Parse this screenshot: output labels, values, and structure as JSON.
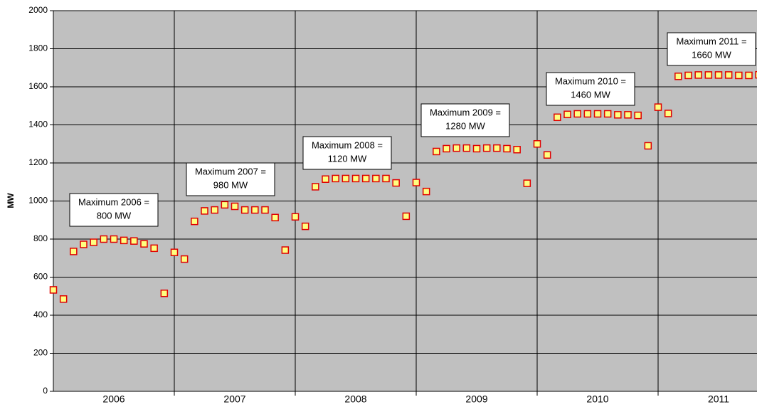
{
  "chart_data": {
    "type": "scatter",
    "y_label": "MW",
    "categories": [
      "2006",
      "2007",
      "2008",
      "2009",
      "2010",
      "2011"
    ],
    "series": [
      {
        "name": "MW",
        "color": "#ffff80",
        "edge_color": "#e00000",
        "values": [
          533,
          485,
          735,
          772,
          783,
          800,
          800,
          793,
          790,
          775,
          752,
          515,
          730,
          695,
          893,
          948,
          953,
          980,
          972,
          953,
          953,
          953,
          913,
          742,
          917,
          867,
          1075,
          1115,
          1118,
          1118,
          1118,
          1118,
          1118,
          1118,
          1095,
          920,
          1097,
          1050,
          1260,
          1275,
          1278,
          1278,
          1275,
          1278,
          1278,
          1275,
          1270,
          1093,
          1300,
          1242,
          1440,
          1455,
          1458,
          1458,
          1458,
          1458,
          1453,
          1453,
          1450,
          1290,
          1493,
          1460,
          1655,
          1660,
          1662,
          1662,
          1662,
          1662,
          1660,
          1660,
          1663
        ]
      }
    ],
    "ylim": [
      0,
      2000
    ],
    "yticks": [
      0,
      200,
      400,
      600,
      800,
      1000,
      1200,
      1400,
      1600,
      1800,
      2000
    ],
    "grid": true,
    "background": "#c0c0c0",
    "annotations": [
      [
        "Maximum 2006 =",
        "800 MW"
      ],
      [
        "Maximum 2007 =",
        "980 MW"
      ],
      [
        "Maximum 2008 =",
        "1120 MW"
      ],
      [
        "Maximum 2009 =",
        "1280 MW"
      ],
      [
        "Maximum 2010 =",
        "1460 MW"
      ],
      [
        "Maximum 2011 =",
        "1660 MW"
      ]
    ]
  }
}
